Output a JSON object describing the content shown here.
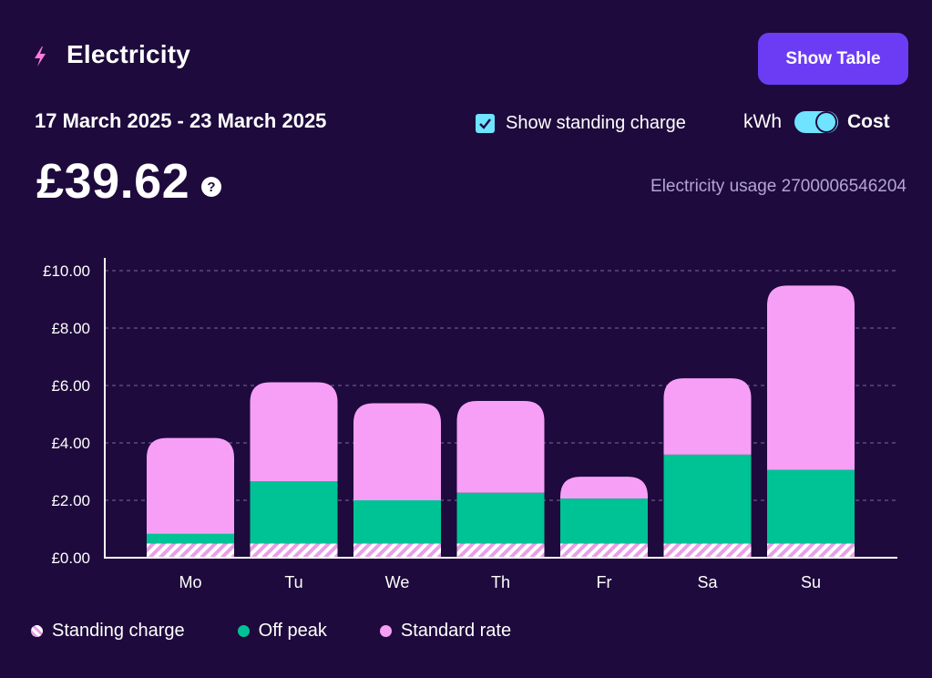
{
  "header": {
    "title": "Electricity",
    "show_table_label": "Show Table",
    "date_range": "17 March 2025 - 23 March 2025",
    "total_cost": "£39.62",
    "help_glyph": "?",
    "meter_label": "Electricity usage 2700006546204"
  },
  "controls": {
    "standing_charge_label": "Show standing charge",
    "standing_charge_checked": true,
    "unit_left_label": "kWh",
    "unit_right_label": "Cost",
    "selected_unit": "Cost"
  },
  "icons": {
    "bolt": "lightning-bolt-icon",
    "checkbox": "check-icon",
    "help": "question-icon"
  },
  "colors": {
    "background": "#1e0a3c",
    "button": "#6c3cf5",
    "accent": "#6fe3ff",
    "standard_rate": "#f79ff6",
    "off_peak": "#00c395",
    "standing_charge": "#e7a0e6",
    "bolt": "#ff7ae0"
  },
  "chart_data": {
    "type": "bar",
    "stacked": true,
    "categories": [
      "Mo",
      "Tu",
      "We",
      "Th",
      "Fr",
      "Sa",
      "Su"
    ],
    "series": [
      {
        "name": "Standing charge",
        "values": [
          0.5,
          0.5,
          0.5,
          0.5,
          0.5,
          0.5,
          0.5
        ]
      },
      {
        "name": "Off peak",
        "values": [
          0.33,
          2.16,
          1.5,
          1.76,
          1.56,
          3.09,
          2.56
        ]
      },
      {
        "name": "Standard rate",
        "values": [
          3.34,
          3.45,
          3.38,
          3.2,
          0.76,
          2.66,
          6.42
        ]
      }
    ],
    "y_ticks": [
      "£0.00",
      "£2.00",
      "£4.00",
      "£6.00",
      "£8.00",
      "£10.00"
    ],
    "ylim": [
      0,
      10
    ],
    "grid": true,
    "legend_position": "bottom-left"
  },
  "legend": [
    {
      "label": "Standing charge"
    },
    {
      "label": "Off peak"
    },
    {
      "label": "Standard rate"
    }
  ]
}
